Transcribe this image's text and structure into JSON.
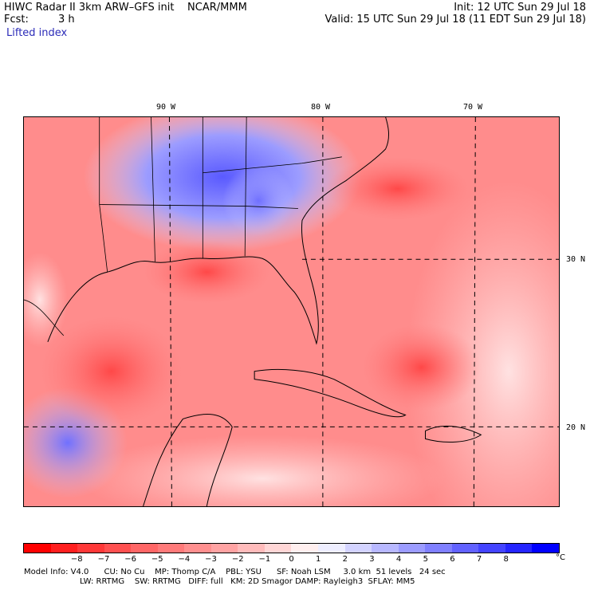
{
  "header": {
    "title": "HIWC Radar II 3km ARW–GFS init    NCAR/MMM",
    "fcst_label": "Fcst:",
    "fcst_value": "3 h",
    "init": "Init: 12 UTC Sun 29 Jul 18",
    "valid": "Valid: 15 UTC Sun 29 Jul 18 (11 EDT Sun 29 Jul 18)",
    "field": "Lifted index"
  },
  "map": {
    "longitude_labels": [
      "90 W",
      "80 W",
      "70 W"
    ],
    "latitude_labels": [
      "30 N",
      "20 N"
    ]
  },
  "colorbar": {
    "ticks": [
      "−8",
      "−7",
      "−6",
      "−5",
      "−4",
      "−3",
      "−2",
      "−1",
      "0",
      "1",
      "2",
      "3",
      "4",
      "5",
      "6",
      "7",
      "8"
    ],
    "unit": "°C",
    "colors": [
      "#ff0000",
      "#ff1f1f",
      "#ff3838",
      "#ff5050",
      "#ff6666",
      "#ff7a7a",
      "#ff8f8f",
      "#ffa3a3",
      "#ffbbbb",
      "#ffd6d6",
      "#ffefef",
      "#eeeeff",
      "#d3d3ff",
      "#b8b8ff",
      "#9c9cff",
      "#8080ff",
      "#6262ff",
      "#4444ff",
      "#2525ff",
      "#0000ff"
    ]
  },
  "footer": {
    "line1": "Model Info: V4.0      CU: No Cu    MP: Thomp C/A    PBL: YSU      SF: Noah LSM     3.0 km  51 levels   24 sec",
    "line2": "LW: RRTMG    SW: RRTMG   DIFF: full   KM: 2D Smagor DAMP: Rayleigh3  SFLAY: MM5"
  }
}
